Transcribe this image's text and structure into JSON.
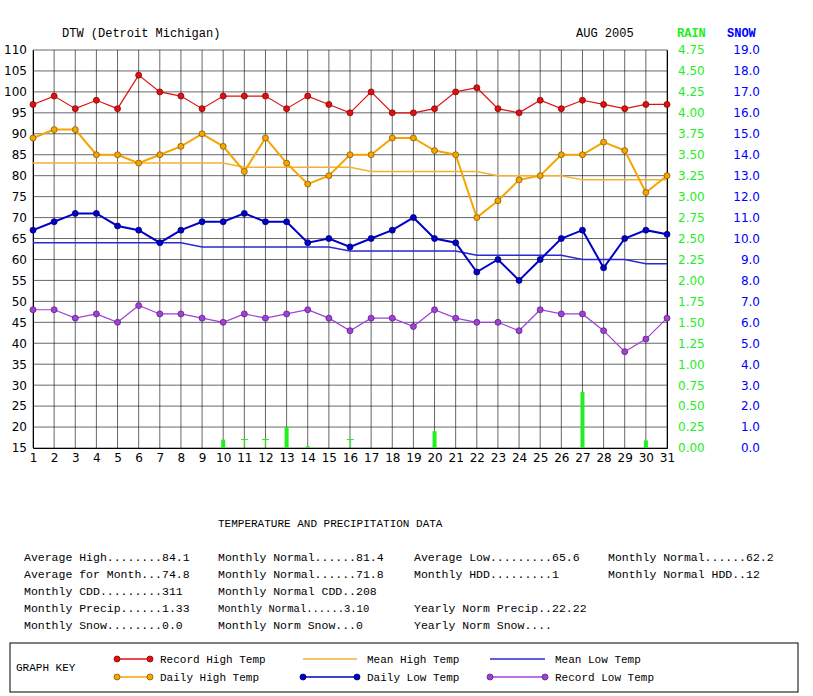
{
  "chart_data": {
    "type": "line",
    "title": "DTW (Detroit Michigan)",
    "subtitle": "AUG 2005",
    "y2_label": "RAIN",
    "y3_label": "SNOW",
    "legend_title": "GRAPH KEY",
    "legend": "bottom",
    "grid": true,
    "x": [
      1,
      2,
      3,
      4,
      5,
      6,
      7,
      8,
      9,
      10,
      11,
      12,
      13,
      14,
      15,
      16,
      17,
      18,
      19,
      20,
      21,
      22,
      23,
      24,
      25,
      26,
      27,
      28,
      29,
      30,
      31
    ],
    "xlim": [
      1,
      31
    ],
    "xticks": [
      1,
      2,
      3,
      4,
      5,
      6,
      7,
      8,
      9,
      10,
      11,
      12,
      13,
      14,
      15,
      16,
      17,
      18,
      19,
      20,
      21,
      22,
      23,
      24,
      25,
      26,
      27,
      28,
      29,
      30,
      31
    ],
    "ylim": [
      15,
      110
    ],
    "yticks": [
      15,
      20,
      25,
      30,
      35,
      40,
      45,
      50,
      55,
      60,
      65,
      70,
      75,
      80,
      85,
      90,
      95,
      100,
      105,
      110
    ],
    "y2lim": [
      0,
      4.75
    ],
    "y2ticks": [
      {
        "value": 0,
        "label": "0.00"
      },
      {
        "value": 0.25,
        "label": "0.25"
      },
      {
        "value": 0.5,
        "label": "0.50"
      },
      {
        "value": 0.75,
        "label": "0.75"
      },
      {
        "value": 1,
        "label": "1.00"
      },
      {
        "value": 1.25,
        "label": "1.25"
      },
      {
        "value": 1.5,
        "label": "1.50"
      },
      {
        "value": 1.75,
        "label": "1.75"
      },
      {
        "value": 2,
        "label": "2.00"
      },
      {
        "value": 2.25,
        "label": "2.25"
      },
      {
        "value": 2.5,
        "label": "2.50"
      },
      {
        "value": 2.75,
        "label": "2.75"
      },
      {
        "value": 3,
        "label": "3.00"
      },
      {
        "value": 3.25,
        "label": "3.25"
      },
      {
        "value": 3.5,
        "label": "3.50"
      },
      {
        "value": 3.75,
        "label": "3.75"
      },
      {
        "value": 4,
        "label": "4.00"
      },
      {
        "value": 4.25,
        "label": "4.25"
      },
      {
        "value": 4.5,
        "label": "4.50"
      },
      {
        "value": 4.75,
        "label": "4.75"
      }
    ],
    "y3lim": [
      0,
      19
    ],
    "y3ticks": [
      {
        "value": 0,
        "label": "0.0"
      },
      {
        "value": 1,
        "label": "1.0"
      },
      {
        "value": 2,
        "label": "2.0"
      },
      {
        "value": 3,
        "label": "3.0"
      },
      {
        "value": 4,
        "label": "4.0"
      },
      {
        "value": 5,
        "label": "5.0"
      },
      {
        "value": 6,
        "label": "6.0"
      },
      {
        "value": 7,
        "label": "7.0"
      },
      {
        "value": 8,
        "label": "8.0"
      },
      {
        "value": 9,
        "label": "9.0"
      },
      {
        "value": 10,
        "label": "10.0"
      },
      {
        "value": 11,
        "label": "11.0"
      },
      {
        "value": 12,
        "label": "12.0"
      },
      {
        "value": 13,
        "label": "13.0"
      },
      {
        "value": 14,
        "label": "14.0"
      },
      {
        "value": 15,
        "label": "15.0"
      },
      {
        "value": 16,
        "label": "16.0"
      },
      {
        "value": 17,
        "label": "17.0"
      },
      {
        "value": 18,
        "label": "18.0"
      },
      {
        "value": 19,
        "label": "19.0"
      }
    ],
    "series": [
      {
        "name": "Record High Temp",
        "type": "line",
        "color": "#e01010",
        "marker": "circle",
        "line_style": "solid",
        "values": [
          97,
          99,
          96,
          98,
          96,
          104,
          100,
          99,
          96,
          99,
          99,
          99,
          96,
          99,
          97,
          95,
          100,
          95,
          95,
          96,
          100,
          101,
          96,
          95,
          98,
          96,
          98,
          97,
          96,
          97,
          97
        ]
      },
      {
        "name": "Mean High Temp",
        "type": "line",
        "color": "#f5b030",
        "marker": "none",
        "line_style": "solid",
        "values": [
          83,
          83,
          83,
          83,
          83,
          83,
          83,
          83,
          83,
          83,
          82,
          82,
          82,
          82,
          82,
          82,
          81,
          81,
          81,
          81,
          81,
          81,
          80,
          80,
          80,
          80,
          79,
          79,
          79,
          79,
          79
        ]
      },
      {
        "name": "Mean Low Temp",
        "type": "line",
        "color": "#2a2ad0",
        "marker": "none",
        "line_style": "solid",
        "values": [
          64,
          64,
          64,
          64,
          64,
          64,
          64,
          64,
          63,
          63,
          63,
          63,
          63,
          63,
          63,
          62,
          62,
          62,
          62,
          62,
          62,
          61,
          61,
          61,
          61,
          61,
          60,
          60,
          60,
          59,
          59
        ]
      },
      {
        "name": "Daily High Temp",
        "type": "line",
        "color": "#f5a400",
        "marker": "circle",
        "line_style": "solid",
        "values": [
          89,
          91,
          91,
          85,
          85,
          83,
          85,
          87,
          90,
          87,
          81,
          89,
          83,
          78,
          80,
          85,
          85,
          89,
          89,
          86,
          85,
          70,
          74,
          79,
          80,
          85,
          85,
          88,
          86,
          76,
          80
        ]
      },
      {
        "name": "Daily Low Temp",
        "type": "line",
        "color": "#0000c8",
        "marker": "circle",
        "line_style": "solid",
        "values": [
          67,
          69,
          71,
          71,
          68,
          67,
          64,
          67,
          69,
          69,
          71,
          69,
          69,
          64,
          65,
          63,
          65,
          67,
          70,
          65,
          64,
          57,
          60,
          55,
          60,
          65,
          67,
          58,
          65,
          67,
          66
        ]
      },
      {
        "name": "Record Low Temp",
        "type": "line",
        "color": "#a040d8",
        "marker": "circle",
        "line_style": "solid",
        "values": [
          48,
          48,
          46,
          47,
          45,
          49,
          47,
          47,
          46,
          45,
          47,
          46,
          47,
          48,
          46,
          43,
          46,
          46,
          44,
          48,
          46,
          45,
          45,
          43,
          48,
          47,
          47,
          43,
          38,
          41,
          46
        ]
      },
      {
        "type": "bar",
        "axis": "y2",
        "color": "#22ee22",
        "values": [
          0,
          0,
          0,
          0,
          0,
          0,
          0,
          0,
          0,
          0.1,
          0,
          0,
          0.25,
          0.02,
          0,
          0,
          0,
          0,
          0,
          0.2,
          0,
          0,
          0,
          0,
          0,
          0,
          0.67,
          0,
          0,
          0.09,
          0
        ],
        "annotations": [
          {
            "x": 11,
            "text": "T"
          },
          {
            "x": 12,
            "text": "T"
          },
          {
            "x": 16,
            "text": "T"
          }
        ]
      }
    ]
  },
  "table": {
    "title": "TEMPERATURE AND PRECIPITATION DATA",
    "rows": [
      [
        "Average High........84.1",
        "Monthly Normal......81.4",
        "Average Low.........65.6",
        "Monthly Normal......62.2"
      ],
      [
        "Average for Month...74.8",
        "Monthly Normal......71.8",
        "Monthly HDD.........1",
        "Monthly Normal HDD..12"
      ],
      [
        "Monthly CDD.........311",
        "Monthly Normal CDD..208",
        null,
        null
      ],
      [
        "Monthly Precip......1.33",
        "Monthly Normal......3.10",
        "Yearly Norm Precip..22.22",
        null
      ],
      [
        "Monthly Snow........0.0",
        "Monthly Norm Snow...0",
        "Yearly Norm Snow....",
        null
      ]
    ]
  }
}
